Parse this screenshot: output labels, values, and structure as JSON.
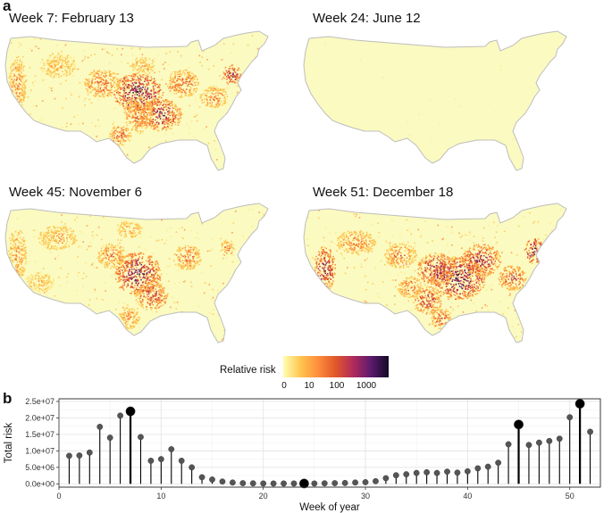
{
  "panel_a": {
    "letter": "a",
    "maps": [
      {
        "title": "Week 7: February 13",
        "week": 7,
        "intensity": "high"
      },
      {
        "title": "Week 24: June 12",
        "week": 24,
        "intensity": "none"
      },
      {
        "title": "Week 45: November 6",
        "week": 45,
        "intensity": "high"
      },
      {
        "title": "Week 51: December 18",
        "week": 51,
        "intensity": "very-high"
      }
    ],
    "legend": {
      "title": "Relative risk",
      "ticks": [
        "0",
        "10",
        "100",
        "1000"
      ],
      "colors": [
        "#ffffb2",
        "#fec44f",
        "#fd8d3c",
        "#e0562b",
        "#b02a5c",
        "#5c1a6e",
        "#120a26"
      ]
    }
  },
  "panel_b": {
    "letter": "b"
  },
  "colors": {
    "land_base": "#fbfac0",
    "outline": "#bdbdbd",
    "stem": "#000000",
    "point_small": "#555555",
    "point_big": "#000000",
    "grid": "#e5e5e5"
  },
  "chart_data": {
    "type": "lollipop",
    "xlabel": "Week of year",
    "ylabel": "Total risk",
    "xlim": [
      0,
      53
    ],
    "ylim": [
      -1000000,
      25800000
    ],
    "xticks": [
      0,
      10,
      20,
      30,
      40,
      50
    ],
    "yticks": [
      0,
      5000000,
      10000000,
      15000000,
      20000000,
      25000000
    ],
    "ytick_labels": [
      "0.0e+00",
      "5.0e+06",
      "1.0e+07",
      "1.5e+07",
      "2.0e+07",
      "2.5e+07"
    ],
    "highlighted_weeks": [
      7,
      24,
      45,
      51
    ],
    "x": [
      1,
      2,
      3,
      4,
      5,
      6,
      7,
      8,
      9,
      10,
      11,
      12,
      13,
      14,
      15,
      16,
      17,
      18,
      19,
      20,
      21,
      22,
      23,
      24,
      25,
      26,
      27,
      28,
      29,
      30,
      31,
      32,
      33,
      34,
      35,
      36,
      37,
      38,
      39,
      40,
      41,
      42,
      43,
      44,
      45,
      46,
      47,
      48,
      49,
      50,
      51,
      52
    ],
    "values": [
      8500000,
      8600000,
      9500000,
      17300000,
      14000000,
      20700000,
      22000000,
      14200000,
      7000000,
      7500000,
      10500000,
      7000000,
      5000000,
      2000000,
      1300000,
      700000,
      400000,
      200000,
      150000,
      100000,
      100000,
      100000,
      100000,
      100000,
      100000,
      150000,
      200000,
      250000,
      400000,
      500000,
      800000,
      1700000,
      2600000,
      2900000,
      3300000,
      3500000,
      3300000,
      3700000,
      3400000,
      3800000,
      4700000,
      5200000,
      6400000,
      12000000,
      18000000,
      11800000,
      12500000,
      13000000,
      13700000,
      20200000,
      24300000,
      15800000
    ]
  }
}
